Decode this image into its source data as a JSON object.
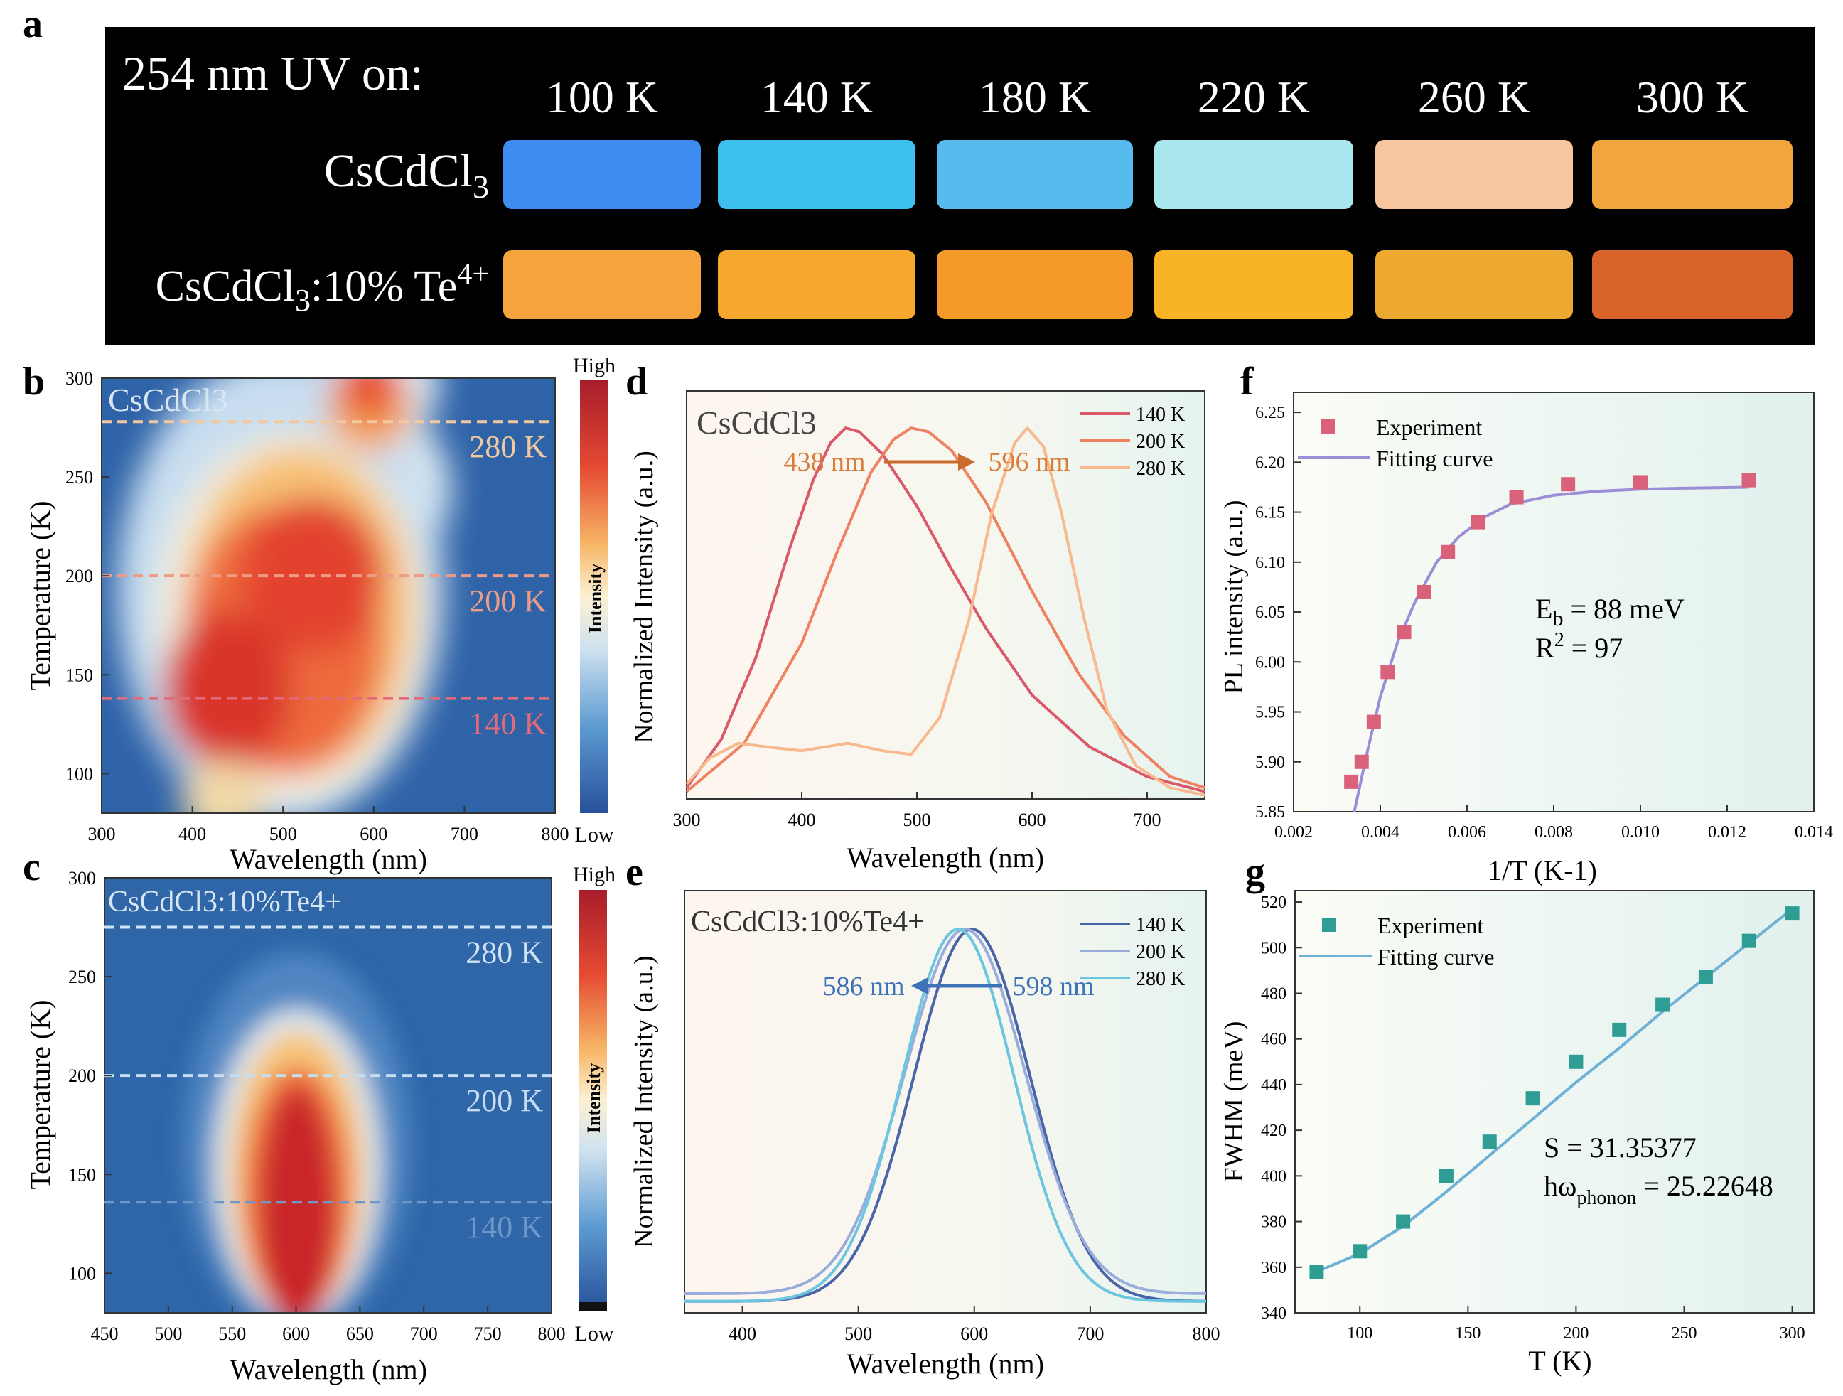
{
  "panel_letters": [
    "a",
    "b",
    "c",
    "d",
    "e",
    "f",
    "g"
  ],
  "photo": {
    "uv_label": "254 nm UV on:",
    "temperatures": [
      "100 K",
      "140 K",
      "180 K",
      "220 K",
      "260 K",
      "300 K"
    ],
    "row1_label": "CsCdCl",
    "row1_sub": "3",
    "row2_label_a": "CsCdCl",
    "row2_sub": "3",
    "row2_label_b": ":10% Te",
    "row2_sup": "4+",
    "row1_colors": [
      "#3f8cf0",
      "#3ec0ee",
      "#58bbee",
      "#a9e6ee",
      "#f7c6a0",
      "#f2a53c"
    ],
    "row2_colors": [
      "#f5a33c",
      "#f6a82e",
      "#f39a2a",
      "#f8b326",
      "#eda832",
      "#d8642a"
    ]
  },
  "icons": [
    "arrow-right-icon",
    "arrow-left-icon"
  ],
  "chart_data": [
    {
      "id": "b",
      "type": "heatmap",
      "title": "CsCdCl3",
      "xlabel": "Wavelength  (nm)",
      "ylabel": "Temperature  (K)",
      "xlim": [
        300,
        800
      ],
      "ylim": [
        80,
        300
      ],
      "xticks": [
        "300",
        "400",
        "500",
        "600",
        "700",
        "800"
      ],
      "yticks": [
        "100",
        "150",
        "200",
        "250",
        "300"
      ],
      "lines": [
        {
          "label": "280 K",
          "value": 278,
          "color": "#f2c99e"
        },
        {
          "label": "200 K",
          "value": 200,
          "color": "#ee9b86"
        },
        {
          "label": "140 K",
          "value": 138,
          "color": "#e36a7a"
        }
      ],
      "colorbar": {
        "high": "High",
        "low": "Low",
        "label": "Intensity"
      }
    },
    {
      "id": "c",
      "type": "heatmap",
      "title": "CsCdCl3:10%Te4+",
      "xlabel": "Wavelength  (nm)",
      "ylabel": "Temperature  (K)",
      "xlim": [
        450,
        800
      ],
      "ylim": [
        80,
        300
      ],
      "xticks": [
        "450",
        "500",
        "550",
        "600",
        "650",
        "700",
        "750",
        "800"
      ],
      "yticks": [
        "100",
        "150",
        "200",
        "250",
        "300"
      ],
      "lines": [
        {
          "label": "280 K",
          "value": 275,
          "color": "#cfe3f2"
        },
        {
          "label": "200 K",
          "value": 200,
          "color": "#c6dcf0"
        },
        {
          "label": "140 K",
          "value": 136,
          "color": "#6d98c9"
        }
      ],
      "colorbar": {
        "high": "High",
        "low": "Low",
        "label": "Intensity"
      }
    },
    {
      "id": "d",
      "type": "line",
      "title": "CsCdCl3",
      "xlabel": "Wavelength  (nm)",
      "ylabel": "Normalized Intensity (a.u.)",
      "xlim": [
        300,
        750
      ],
      "xticks": [
        "300",
        "400",
        "500",
        "600",
        "700"
      ],
      "annotation": {
        "from": "438 nm",
        "to": "596 nm"
      },
      "series": [
        {
          "name": "140 K",
          "color": "#d9596b",
          "x": [
            300,
            330,
            360,
            390,
            410,
            425,
            438,
            450,
            470,
            500,
            530,
            560,
            600,
            650,
            700,
            750
          ],
          "y": [
            0.03,
            0.16,
            0.38,
            0.68,
            0.86,
            0.96,
            1.0,
            0.99,
            0.93,
            0.79,
            0.62,
            0.46,
            0.28,
            0.14,
            0.06,
            0.02
          ]
        },
        {
          "name": "200 K",
          "color": "#ef8060",
          "x": [
            300,
            350,
            400,
            430,
            460,
            480,
            495,
            510,
            530,
            560,
            600,
            640,
            680,
            720,
            750
          ],
          "y": [
            0.02,
            0.15,
            0.42,
            0.66,
            0.88,
            0.97,
            1.0,
            0.99,
            0.94,
            0.8,
            0.56,
            0.34,
            0.17,
            0.06,
            0.03
          ]
        },
        {
          "name": "280 K",
          "color": "#f9b98e",
          "x": [
            300,
            320,
            345,
            370,
            400,
            440,
            470,
            495,
            520,
            545,
            565,
            585,
            596,
            610,
            625,
            645,
            665,
            690,
            720,
            750
          ],
          "y": [
            0.04,
            0.11,
            0.15,
            0.14,
            0.13,
            0.15,
            0.13,
            0.12,
            0.22,
            0.48,
            0.77,
            0.96,
            1.0,
            0.95,
            0.78,
            0.49,
            0.24,
            0.09,
            0.03,
            0.01
          ]
        }
      ]
    },
    {
      "id": "e",
      "type": "line",
      "title": "CsCdCl3:10%Te4+",
      "xlabel": "Wavelength  (nm)",
      "ylabel": "Normalized Intensity (a.u.)",
      "xlim": [
        350,
        800
      ],
      "xticks": [
        "400",
        "500",
        "600",
        "700",
        "800"
      ],
      "annotation": {
        "from": "598 nm",
        "to": "586 nm"
      },
      "series": [
        {
          "name": "140 K",
          "color": "#4a64a8",
          "center": 598,
          "sigma": 50,
          "base": 0.03
        },
        {
          "name": "200 K",
          "color": "#9aacdc",
          "center": 592,
          "sigma": 52,
          "base": 0.05
        },
        {
          "name": "280 K",
          "color": "#6cc6df",
          "center": 586,
          "sigma": 48,
          "base": 0.03
        }
      ]
    },
    {
      "id": "f",
      "type": "scatter",
      "xlabel": "1/T  (K-1)",
      "ylabel": "PL intensity (a.u.)",
      "xlim": [
        0.002,
        0.014
      ],
      "ylim": [
        5.85,
        6.27
      ],
      "xticks": [
        "0.002",
        "0.004",
        "0.006",
        "0.008",
        "0.010",
        "0.012",
        "0.014"
      ],
      "yticks": [
        "5.85",
        "5.90",
        "5.95",
        "6.00",
        "6.05",
        "6.10",
        "6.15",
        "6.20",
        "6.25"
      ],
      "legend": [
        "Experiment",
        "Fitting curve"
      ],
      "points": {
        "x": [
          0.00333,
          0.00357,
          0.00385,
          0.00417,
          0.00455,
          0.005,
          0.00556,
          0.00625,
          0.00714,
          0.00833,
          0.01,
          0.0125
        ],
        "y": [
          5.88,
          5.9,
          5.94,
          5.99,
          6.03,
          6.07,
          6.11,
          6.14,
          6.165,
          6.178,
          6.18,
          6.182
        ]
      },
      "fit": {
        "x": [
          0.0034,
          0.0037,
          0.004,
          0.0044,
          0.0048,
          0.0053,
          0.0058,
          0.0064,
          0.007,
          0.008,
          0.009,
          0.01,
          0.011,
          0.0125
        ],
        "y": [
          5.85,
          5.91,
          5.965,
          6.02,
          6.06,
          6.1,
          6.125,
          6.145,
          6.158,
          6.167,
          6.171,
          6.173,
          6.174,
          6.175
        ]
      },
      "annotation_lines": [
        "E",
        "b",
        " = 88 meV",
        "R",
        "2",
        " = 97"
      ],
      "point_color": "#d9617a",
      "line_color": "#9b8ed6"
    },
    {
      "id": "g",
      "type": "scatter",
      "xlabel": "T (K)",
      "ylabel": "FWHM (meV)",
      "xlim": [
        70,
        310
      ],
      "ylim": [
        340,
        525
      ],
      "xticks": [
        "100",
        "150",
        "200",
        "250",
        "300"
      ],
      "yticks": [
        "340",
        "360",
        "380",
        "400",
        "420",
        "440",
        "460",
        "480",
        "500",
        "520"
      ],
      "legend": [
        "Experiment",
        "Fitting curve"
      ],
      "points": {
        "x": [
          80,
          100,
          120,
          140,
          160,
          180,
          200,
          220,
          240,
          260,
          280,
          300
        ],
        "y": [
          358,
          367,
          380,
          400,
          415,
          434,
          450,
          464,
          475,
          487,
          503,
          515
        ]
      },
      "fit": {
        "x": [
          80,
          100,
          120,
          140,
          160,
          180,
          200,
          220,
          240,
          260,
          280,
          300
        ],
        "y": [
          358,
          366,
          378,
          393,
          409,
          425,
          441,
          456,
          472,
          487,
          502,
          517
        ]
      },
      "annotation_lines": [
        "S = 31.35377",
        "hω",
        "phonon",
        " = 25.22648"
      ],
      "point_color": "#2e9e95",
      "line_color": "#6fb0d6"
    }
  ]
}
